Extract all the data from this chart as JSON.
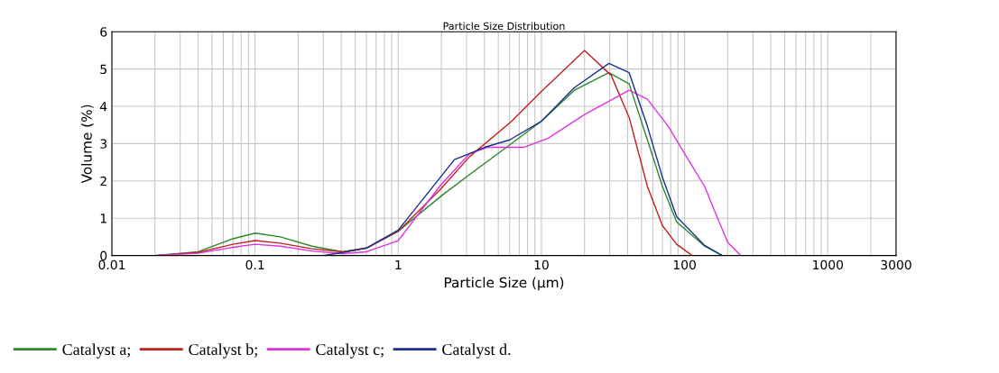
{
  "chart_data": {
    "type": "line",
    "title": "Particle Size Distribution",
    "xlabel": "Particle Size (µm)",
    "ylabel": "Volume (%)",
    "log": "x",
    "xlim": [
      0.01,
      3000
    ],
    "xticks": [
      0.01,
      0.1,
      1,
      10,
      100,
      1000,
      3000
    ],
    "ylim": [
      0,
      6
    ],
    "yticks": [
      0,
      1,
      2,
      3,
      4,
      5,
      6
    ],
    "grid": true,
    "legend": "bottom",
    "marker": "none",
    "line_style": "solid",
    "series": [
      {
        "name": "Catalyst a;",
        "color": "#2a8a2a",
        "x": [
          0.02,
          0.04,
          0.07,
          0.1,
          0.15,
          0.25,
          0.41,
          0.6,
          1,
          2,
          3.15,
          5.7,
          10,
          17,
          29.6,
          41,
          55,
          70,
          88,
          138,
          183,
          3000
        ],
        "values": [
          0,
          0.1,
          0.45,
          0.6,
          0.5,
          0.25,
          0.1,
          0.2,
          0.65,
          1.6,
          2.17,
          2.9,
          3.6,
          4.43,
          4.9,
          4.6,
          3.1,
          1.85,
          0.9,
          0.25,
          0,
          0
        ]
      },
      {
        "name": "Catalyst b;",
        "color": "#c02020",
        "x": [
          0.02,
          0.04,
          0.07,
          0.1,
          0.15,
          0.25,
          0.41,
          0.6,
          1,
          2,
          3.15,
          6.2,
          10,
          20,
          30.7,
          41,
          55,
          70,
          88,
          113,
          3000
        ],
        "values": [
          0,
          0.08,
          0.3,
          0.4,
          0.33,
          0.18,
          0.1,
          0.2,
          0.65,
          1.8,
          2.65,
          3.6,
          4.4,
          5.5,
          4.83,
          3.7,
          1.85,
          0.8,
          0.3,
          0,
          0
        ]
      },
      {
        "name": "Catalyst c;",
        "color": "#dd33dd",
        "x": [
          0.02,
          0.04,
          0.07,
          0.1,
          0.15,
          0.25,
          0.41,
          0.6,
          1,
          1.94,
          3.15,
          4.2,
          7.5,
          11.1,
          20,
          41,
          55,
          77,
          103,
          138,
          170,
          200,
          246,
          3000
        ],
        "values": [
          0,
          0.06,
          0.22,
          0.3,
          0.25,
          0.12,
          0.05,
          0.1,
          0.4,
          1.85,
          2.73,
          2.9,
          2.9,
          3.14,
          3.78,
          4.43,
          4.19,
          3.46,
          2.65,
          1.85,
          1.0,
          0.35,
          0,
          0
        ]
      },
      {
        "name": "Catalyst d.",
        "color": "#1a2f8f",
        "x": [
          0.02,
          0.3,
          0.41,
          0.6,
          1,
          2.47,
          4.0,
          6.0,
          10,
          17,
          29.6,
          41,
          55,
          70,
          88,
          138,
          183,
          3000
        ],
        "values": [
          0,
          0,
          0.08,
          0.2,
          0.68,
          2.57,
          2.9,
          3.1,
          3.6,
          4.5,
          5.15,
          4.9,
          3.46,
          2.1,
          1.04,
          0.27,
          0,
          0
        ]
      }
    ]
  }
}
